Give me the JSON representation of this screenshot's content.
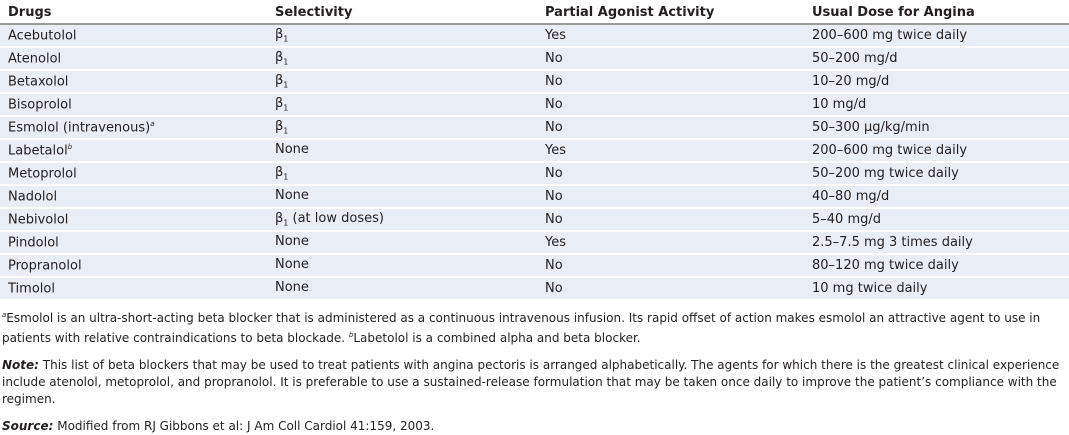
{
  "headers": [
    "Drugs",
    "Selectivity",
    "Partial Agonist Activity",
    "Usual Dose for Angina"
  ],
  "rows": [
    {
      "drug": "Acebutolol",
      "sup": "",
      "sel": "β",
      "sub": "1",
      "selx": "",
      "pa": "Yes",
      "dose": "200–600 mg twice daily"
    },
    {
      "drug": "Atenolol",
      "sup": "",
      "sel": "β",
      "sub": "1",
      "selx": "",
      "pa": "No",
      "dose": "50–200 mg/d"
    },
    {
      "drug": "Betaxolol",
      "sup": "",
      "sel": "β",
      "sub": "1",
      "selx": "",
      "pa": "No",
      "dose": "10–20 mg/d"
    },
    {
      "drug": "Bisoprolol",
      "sup": "",
      "sel": "β",
      "sub": "1",
      "selx": "",
      "pa": "No",
      "dose": "10 mg/d"
    },
    {
      "drug": "Esmolol (intravenous)",
      "sup": "a",
      "sel": "β",
      "sub": "1",
      "selx": "",
      "pa": "No",
      "dose": "50–300 µg/kg/min"
    },
    {
      "drug": "Labetalol",
      "sup": "b",
      "sel": "None",
      "sub": "",
      "selx": "",
      "pa": "Yes",
      "dose": "200–600 mg twice daily"
    },
    {
      "drug": "Metoprolol",
      "sup": "",
      "sel": "β",
      "sub": "1",
      "selx": "",
      "pa": "No",
      "dose": "50–200 mg twice daily"
    },
    {
      "drug": "Nadolol",
      "sup": "",
      "sel": "None",
      "sub": "",
      "selx": "",
      "pa": "No",
      "dose": "40–80 mg/d"
    },
    {
      "drug": "Nebivolol",
      "sup": "",
      "sel": "β",
      "sub": "1",
      "selx": " (at low doses)",
      "pa": "No",
      "dose": "5–40 mg/d"
    },
    {
      "drug": "Pindolol",
      "sup": "",
      "sel": "None",
      "sub": "",
      "selx": "",
      "pa": "Yes",
      "dose": "2.5–7.5 mg 3 times daily"
    },
    {
      "drug": "Propranolol",
      "sup": "",
      "sel": "None",
      "sub": "",
      "selx": "",
      "pa": "No",
      "dose": "80–120 mg twice daily"
    },
    {
      "drug": "Timolol",
      "sup": "",
      "sel": "None",
      "sub": "",
      "selx": "",
      "pa": "No",
      "dose": "10 mg twice daily"
    }
  ],
  "footnotes": {
    "a_mark": "a",
    "a_text": "Esmolol is an ultra-short-acting beta blocker that is administered as a continuous intravenous infusion. Its rapid offset of action makes esmolol an attractive agent to use in patients with relative contraindications to beta blockade.  ",
    "b_mark": "b",
    "b_text": "Labetolol is a combined alpha and beta blocker."
  },
  "note": {
    "label": "Note:",
    "text": " This list of beta blockers that may be used to treat patients with angina pectoris is arranged alphabetically. The agents for which there is the greatest clinical experience include atenolol, metoprolol, and propranolol. It is preferable to use a sustained-release formulation that may be taken once daily to improve the patient’s compliance with the regimen."
  },
  "source": {
    "label": "Source:",
    "text": " Modified from RJ Gibbons et al: J Am Coll Cardiol 41:159, 2003."
  }
}
